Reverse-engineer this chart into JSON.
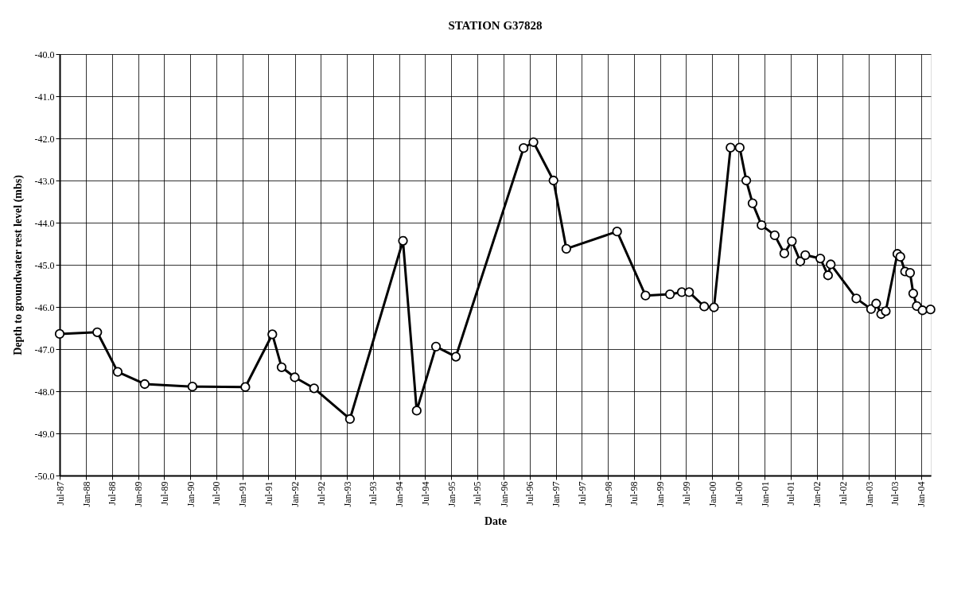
{
  "chart_data": {
    "type": "line",
    "title": "STATION G37828",
    "xlabel": "Date",
    "ylabel": "Depth to groundwater rest level (mbs)",
    "x": [
      "1987-07-01",
      "1988-03-20",
      "1988-08-10",
      "1989-02-15",
      "1990-01-15",
      "1991-01-20",
      "1991-07-28",
      "1991-10-01",
      "1992-01-01",
      "1992-05-15",
      "1993-01-21",
      "1994-01-27",
      "1994-05-03",
      "1994-09-15",
      "1995-02-01",
      "1996-05-20",
      "1996-07-28",
      "1996-12-15",
      "1997-03-15",
      "1998-03-05",
      "1998-09-20",
      "1999-03-10",
      "1999-06-01",
      "1999-07-22",
      "1999-11-05",
      "2000-01-12",
      "2000-05-07",
      "2000-07-10",
      "2000-08-25",
      "2000-10-08",
      "2000-12-10",
      "2001-03-12",
      "2001-05-18",
      "2001-07-10",
      "2001-09-07",
      "2001-10-12",
      "2002-01-25",
      "2002-03-20",
      "2002-04-08",
      "2002-10-04",
      "2003-01-15",
      "2003-02-20",
      "2003-03-27",
      "2003-04-28",
      "2003-07-18",
      "2003-08-08",
      "2003-09-10",
      "2003-10-15",
      "2003-11-06",
      "2003-12-01",
      "2004-01-10",
      "2004-03-06"
    ],
    "series": [
      {
        "color": "#000000",
        "values": [
          -46.64,
          -46.6,
          -47.54,
          -47.83,
          -47.89,
          -47.9,
          -46.65,
          -47.43,
          -47.67,
          -47.93,
          -48.66,
          -44.43,
          -48.46,
          -46.94,
          -47.18,
          -42.23,
          -42.09,
          -43.0,
          -44.62,
          -44.21,
          -45.73,
          -45.7,
          -45.65,
          -45.65,
          -45.99,
          -46.01,
          -42.22,
          -42.22,
          -43.0,
          -43.54,
          -44.06,
          -44.3,
          -44.73,
          -44.44,
          -44.92,
          -44.77,
          -44.85,
          -45.25,
          -44.99,
          -45.8,
          -46.05,
          -45.92,
          -46.17,
          -46.1,
          -44.74,
          -44.81,
          -45.16,
          -45.19,
          -45.68,
          -45.98,
          -46.08,
          -46.06
        ]
      }
    ],
    "xlim": [
      "1987-07-01",
      "2004-03-08"
    ],
    "xticks": [
      {
        "value": "1987-07-01",
        "label": "Jul-87"
      },
      {
        "value": "1988-01-01",
        "label": "Jan-88"
      },
      {
        "value": "1988-07-01",
        "label": "Jul-88"
      },
      {
        "value": "1989-01-01",
        "label": "Jan-89"
      },
      {
        "value": "1989-07-01",
        "label": "Jul-89"
      },
      {
        "value": "1990-01-01",
        "label": "Jan-90"
      },
      {
        "value": "1990-07-01",
        "label": "Jul-90"
      },
      {
        "value": "1991-01-01",
        "label": "Jan-91"
      },
      {
        "value": "1991-07-01",
        "label": "Jul-91"
      },
      {
        "value": "1992-01-01",
        "label": "Jan-92"
      },
      {
        "value": "1992-07-01",
        "label": "Jul-92"
      },
      {
        "value": "1993-01-01",
        "label": "Jan-93"
      },
      {
        "value": "1993-07-01",
        "label": "Jul-93"
      },
      {
        "value": "1994-01-01",
        "label": "Jan-94"
      },
      {
        "value": "1994-07-01",
        "label": "Jul-94"
      },
      {
        "value": "1995-01-01",
        "label": "Jan-95"
      },
      {
        "value": "1995-07-01",
        "label": "Jul-95"
      },
      {
        "value": "1996-01-01",
        "label": "Jan-96"
      },
      {
        "value": "1996-07-01",
        "label": "Jul-96"
      },
      {
        "value": "1997-01-01",
        "label": "Jan-97"
      },
      {
        "value": "1997-07-01",
        "label": "Jul-97"
      },
      {
        "value": "1998-01-01",
        "label": "Jan-98"
      },
      {
        "value": "1998-07-01",
        "label": "Jul-98"
      },
      {
        "value": "1999-01-01",
        "label": "Jan-99"
      },
      {
        "value": "1999-07-01",
        "label": "Jul-99"
      },
      {
        "value": "2000-01-01",
        "label": "Jan-00"
      },
      {
        "value": "2000-07-01",
        "label": "Jul-00"
      },
      {
        "value": "2001-01-01",
        "label": "Jan-01"
      },
      {
        "value": "2001-07-01",
        "label": "Jul-01"
      },
      {
        "value": "2002-01-01",
        "label": "Jan-02"
      },
      {
        "value": "2002-07-01",
        "label": "Jul-02"
      },
      {
        "value": "2003-01-01",
        "label": "Jan-03"
      },
      {
        "value": "2003-07-01",
        "label": "Jul-03"
      },
      {
        "value": "2004-01-01",
        "label": "Jan-04"
      }
    ],
    "ylim": [
      -50,
      -40
    ],
    "yticks": [
      {
        "value": -50,
        "label": "-50.0"
      },
      {
        "value": -49,
        "label": "-49.0"
      },
      {
        "value": -48,
        "label": "-48.0"
      },
      {
        "value": -47,
        "label": "-47.0"
      },
      {
        "value": -46,
        "label": "-46.0"
      },
      {
        "value": -45,
        "label": "-45.0"
      },
      {
        "value": -44,
        "label": "-44.0"
      },
      {
        "value": -43,
        "label": "-43.0"
      },
      {
        "value": -42,
        "label": "-42.0"
      },
      {
        "value": -41,
        "label": "-41.0"
      },
      {
        "value": -40,
        "label": "-40.0"
      }
    ],
    "grid": true,
    "marker": "circle",
    "line_style": "solid",
    "legend": false
  }
}
